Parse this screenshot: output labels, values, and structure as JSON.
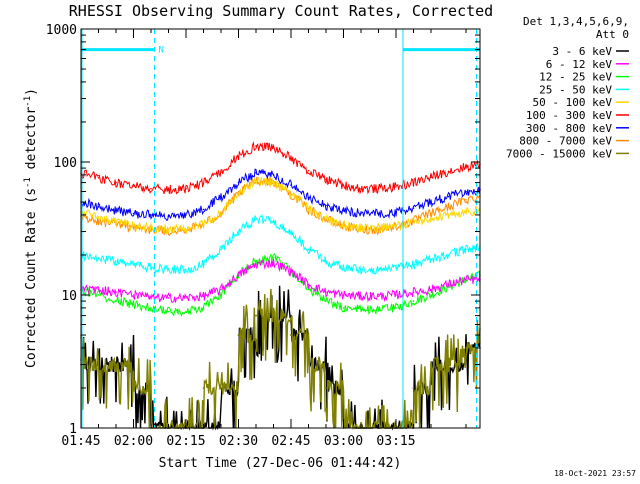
{
  "chart_data": {
    "type": "line",
    "title": "RHESSI Observing Summary Count Rates, Corrected",
    "xlabel": "Start Time (27-Dec-06 01:44:42)",
    "ylabel": "Corrected Count Rate (s",
    "ylabel_sup1": "-1",
    "ylabel_mid": " detector",
    "ylabel_sup2": "-1",
    "ylabel_end": ")",
    "y_scale": "log",
    "ylim": [
      1,
      1000
    ],
    "xlim": [
      0,
      114
    ],
    "x_unit": "minutes after 01:45",
    "x_ticks": [
      {
        "value": 0,
        "label": "01:45"
      },
      {
        "value": 15,
        "label": "02:00"
      },
      {
        "value": 30,
        "label": "02:15"
      },
      {
        "value": 45,
        "label": "02:30"
      },
      {
        "value": 60,
        "label": "02:45"
      },
      {
        "value": 75,
        "label": "03:00"
      },
      {
        "value": 90,
        "label": "03:15"
      }
    ],
    "y_ticks": [
      {
        "value": 1,
        "label": "1"
      },
      {
        "value": 10,
        "label": "10"
      },
      {
        "value": 100,
        "label": "100"
      },
      {
        "value": 1000,
        "label": "1000"
      }
    ],
    "legend": {
      "header_line1": "Det 1,3,4,5,6,9,",
      "header_line2": "Att 0",
      "placement": "right"
    },
    "annotations": {
      "night_label": "N",
      "timestamp": "18-Oct-2021 23:57"
    },
    "night_intervals": [
      [
        0,
        21
      ],
      [
        92,
        114
      ]
    ],
    "night_level": 700,
    "vertical_markers": [
      21,
      92,
      113
    ],
    "x": [
      0,
      5,
      10,
      15,
      20,
      25,
      30,
      35,
      40,
      45,
      50,
      55,
      60,
      65,
      70,
      75,
      80,
      85,
      90,
      95,
      100,
      105,
      110,
      114
    ],
    "series": [
      {
        "name": "3 - 6 keV",
        "color": "#000000",
        "step": true,
        "values": [
          3,
          3,
          3,
          2,
          1,
          1,
          1,
          1,
          2,
          5,
          7,
          7,
          5,
          3,
          2,
          1,
          1,
          1,
          1,
          2,
          3,
          3,
          4,
          4
        ]
      },
      {
        "name": "6 - 12 keV",
        "color": "#ff00ff",
        "values": [
          11,
          11,
          10.5,
          10,
          9.5,
          9.5,
          9.5,
          9.8,
          11,
          14,
          17,
          17.5,
          15,
          12,
          10.5,
          10,
          9.8,
          9.8,
          10,
          10.5,
          11,
          12,
          13,
          13
        ]
      },
      {
        "name": "12 - 25 keV",
        "color": "#00ff00",
        "values": [
          11,
          10,
          9,
          8.5,
          8,
          7.5,
          7.5,
          8,
          10,
          14,
          18,
          19,
          15,
          11,
          9,
          8,
          7.8,
          7.8,
          8,
          9,
          10,
          11.5,
          13,
          14
        ]
      },
      {
        "name": "25 - 50 keV",
        "color": "#00ffff",
        "values": [
          20,
          19,
          18,
          17,
          16,
          15.5,
          15.5,
          17,
          22,
          30,
          37,
          36,
          29,
          22,
          18,
          16,
          15.5,
          15.5,
          16,
          17,
          18.5,
          20,
          22,
          23
        ]
      },
      {
        "name": "50 - 100 keV",
        "color": "#ffd700",
        "values": [
          42,
          38,
          35,
          33,
          32,
          31,
          31,
          34,
          42,
          58,
          72,
          70,
          57,
          45,
          37,
          33,
          32,
          32,
          33,
          35,
          38,
          40,
          42,
          43
        ]
      },
      {
        "name": "100 - 300 keV",
        "color": "#ff0000",
        "values": [
          82,
          76,
          70,
          66,
          63,
          62,
          63,
          69,
          84,
          110,
          132,
          128,
          106,
          86,
          74,
          67,
          63,
          63,
          65,
          70,
          77,
          85,
          92,
          96
        ]
      },
      {
        "name": "300 - 800 keV",
        "color": "#0000ff",
        "values": [
          50,
          46,
          43,
          41,
          40,
          39,
          40,
          44,
          54,
          70,
          83,
          80,
          67,
          54,
          47,
          43,
          41,
          41,
          42,
          45,
          50,
          55,
          60,
          62
        ]
      },
      {
        "name": "800 - 7000 keV",
        "color": "#ff8c00",
        "values": [
          39,
          36,
          34,
          32,
          31,
          30,
          31,
          34,
          41,
          57,
          73,
          71,
          57,
          44,
          37,
          33,
          31,
          31,
          33,
          36,
          41,
          46,
          52,
          55
        ]
      },
      {
        "name": "7000 - 15000 keV",
        "color": "#808000",
        "step": true,
        "values": [
          3,
          3,
          3,
          2,
          1,
          1,
          1,
          2,
          2,
          5,
          7,
          7,
          5,
          3,
          2,
          1,
          1,
          1,
          1,
          2,
          3,
          3,
          4,
          4
        ]
      }
    ]
  }
}
